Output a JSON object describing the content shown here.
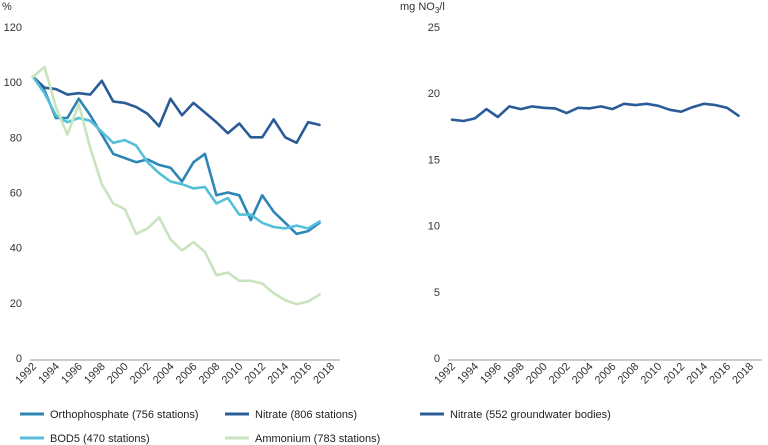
{
  "chart_data": [
    {
      "type": "line",
      "ylabel": "%",
      "ylim": [
        0,
        120
      ],
      "yticks": [
        0,
        20,
        40,
        60,
        80,
        100,
        120
      ],
      "xlim": [
        1992,
        2018
      ],
      "xticks": [
        "1992",
        "1994",
        "1996",
        "1998",
        "2000",
        "2002",
        "2004",
        "2006",
        "2008",
        "2010",
        "2012",
        "2014",
        "2016",
        "2018"
      ],
      "x": [
        1992,
        1993,
        1994,
        1995,
        1996,
        1997,
        1998,
        1999,
        2000,
        2001,
        2002,
        2003,
        2004,
        2005,
        2006,
        2007,
        2008,
        2009,
        2010,
        2011,
        2012,
        2013,
        2014,
        2015,
        2016,
        2017
      ],
      "series": [
        {
          "name": "Orthophosphate (756 stations)",
          "color": "#2e86b5",
          "values": [
            102,
            97,
            87,
            87,
            94,
            88,
            81,
            74,
            72.5,
            71,
            72,
            70,
            69,
            64,
            71,
            74,
            59,
            60,
            59,
            50,
            59,
            53,
            49,
            45,
            46,
            49
          ]
        },
        {
          "name": "Nitrate (806 stations)",
          "color": "#2b5c98",
          "values": [
            102,
            98,
            97.5,
            95.5,
            96,
            95.5,
            100.5,
            93,
            92.5,
            91,
            88.5,
            84,
            94,
            88,
            92.5,
            89,
            85.5,
            81.5,
            85,
            80,
            80,
            86.5,
            80,
            78,
            85.5,
            84.5
          ]
        },
        {
          "name": "BOD5 (470 stations)",
          "color": "#55c0d8",
          "values": [
            102,
            96,
            88,
            85.5,
            87,
            86,
            82,
            78,
            79,
            77,
            71,
            67,
            64,
            63,
            61.5,
            62,
            56,
            58,
            52,
            52,
            49,
            47.5,
            47,
            48,
            47,
            49.5
          ]
        },
        {
          "name": "Ammonium (783 stations)",
          "color": "#c9e4bd",
          "values": [
            102,
            105.5,
            91,
            81,
            92,
            76,
            63,
            56,
            54,
            45,
            47,
            51,
            43,
            39,
            42,
            38.5,
            30,
            31,
            28,
            28,
            27,
            23.5,
            21,
            19.5,
            20.5,
            23
          ]
        }
      ],
      "legend": [
        "Orthophosphate (756 stations)",
        "Nitrate (806 stations)",
        "BOD5 (470 stations)",
        "Ammonium (783 stations)"
      ]
    },
    {
      "type": "line",
      "ylabel_parts": {
        "pre": "mg NO",
        "sub": "3",
        "post": "/l"
      },
      "ylim": [
        0,
        25
      ],
      "yticks": [
        0,
        5,
        10,
        15,
        20,
        25
      ],
      "xlim": [
        1992,
        2018
      ],
      "xticks": [
        "1992",
        "1994",
        "1996",
        "1998",
        "2000",
        "2002",
        "2004",
        "2006",
        "2008",
        "2010",
        "2012",
        "2014",
        "2016",
        "2018"
      ],
      "x": [
        1992,
        1993,
        1994,
        1995,
        1996,
        1997,
        1998,
        1999,
        2000,
        2001,
        2002,
        2003,
        2004,
        2005,
        2006,
        2007,
        2008,
        2009,
        2010,
        2011,
        2012,
        2013,
        2014,
        2015,
        2016,
        2017
      ],
      "series": [
        {
          "name": "Nitrate (552 groundwater bodies)",
          "color": "#2b5c98",
          "values": [
            18.0,
            17.9,
            18.1,
            18.8,
            18.2,
            19.0,
            18.8,
            19.0,
            18.9,
            18.85,
            18.5,
            18.9,
            18.85,
            19.0,
            18.8,
            19.2,
            19.1,
            19.2,
            19.05,
            18.75,
            18.6,
            18.95,
            19.2,
            19.1,
            18.9,
            18.3
          ]
        }
      ],
      "legend": [
        "Nitrate (552 groundwater bodies)"
      ]
    }
  ]
}
